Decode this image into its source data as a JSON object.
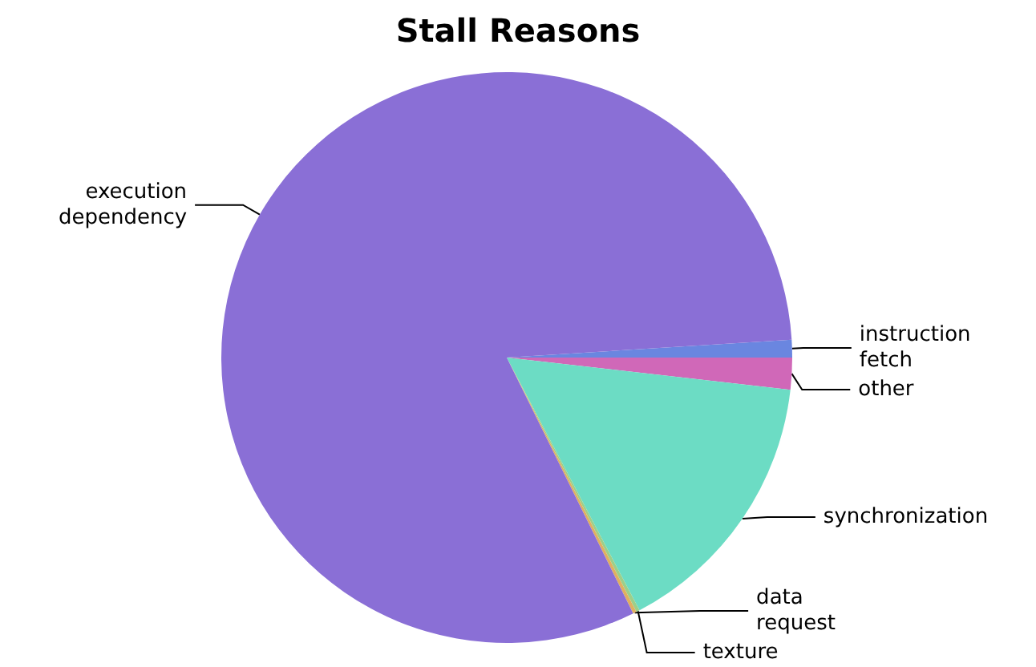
{
  "chart_data": {
    "type": "pie",
    "title": "Stall Reasons",
    "categories": [
      "instruction fetch",
      "other",
      "synchronization",
      "texture",
      "data request",
      "execution dependency"
    ],
    "values": [
      1.0,
      1.8,
      15.5,
      0.2,
      0.2,
      81.3
    ],
    "colors": [
      "#6a86e0",
      "#d068b8",
      "#6cdcc4",
      "#9ccf8a",
      "#e0b060",
      "#8a6fd6"
    ],
    "legend": false
  }
}
